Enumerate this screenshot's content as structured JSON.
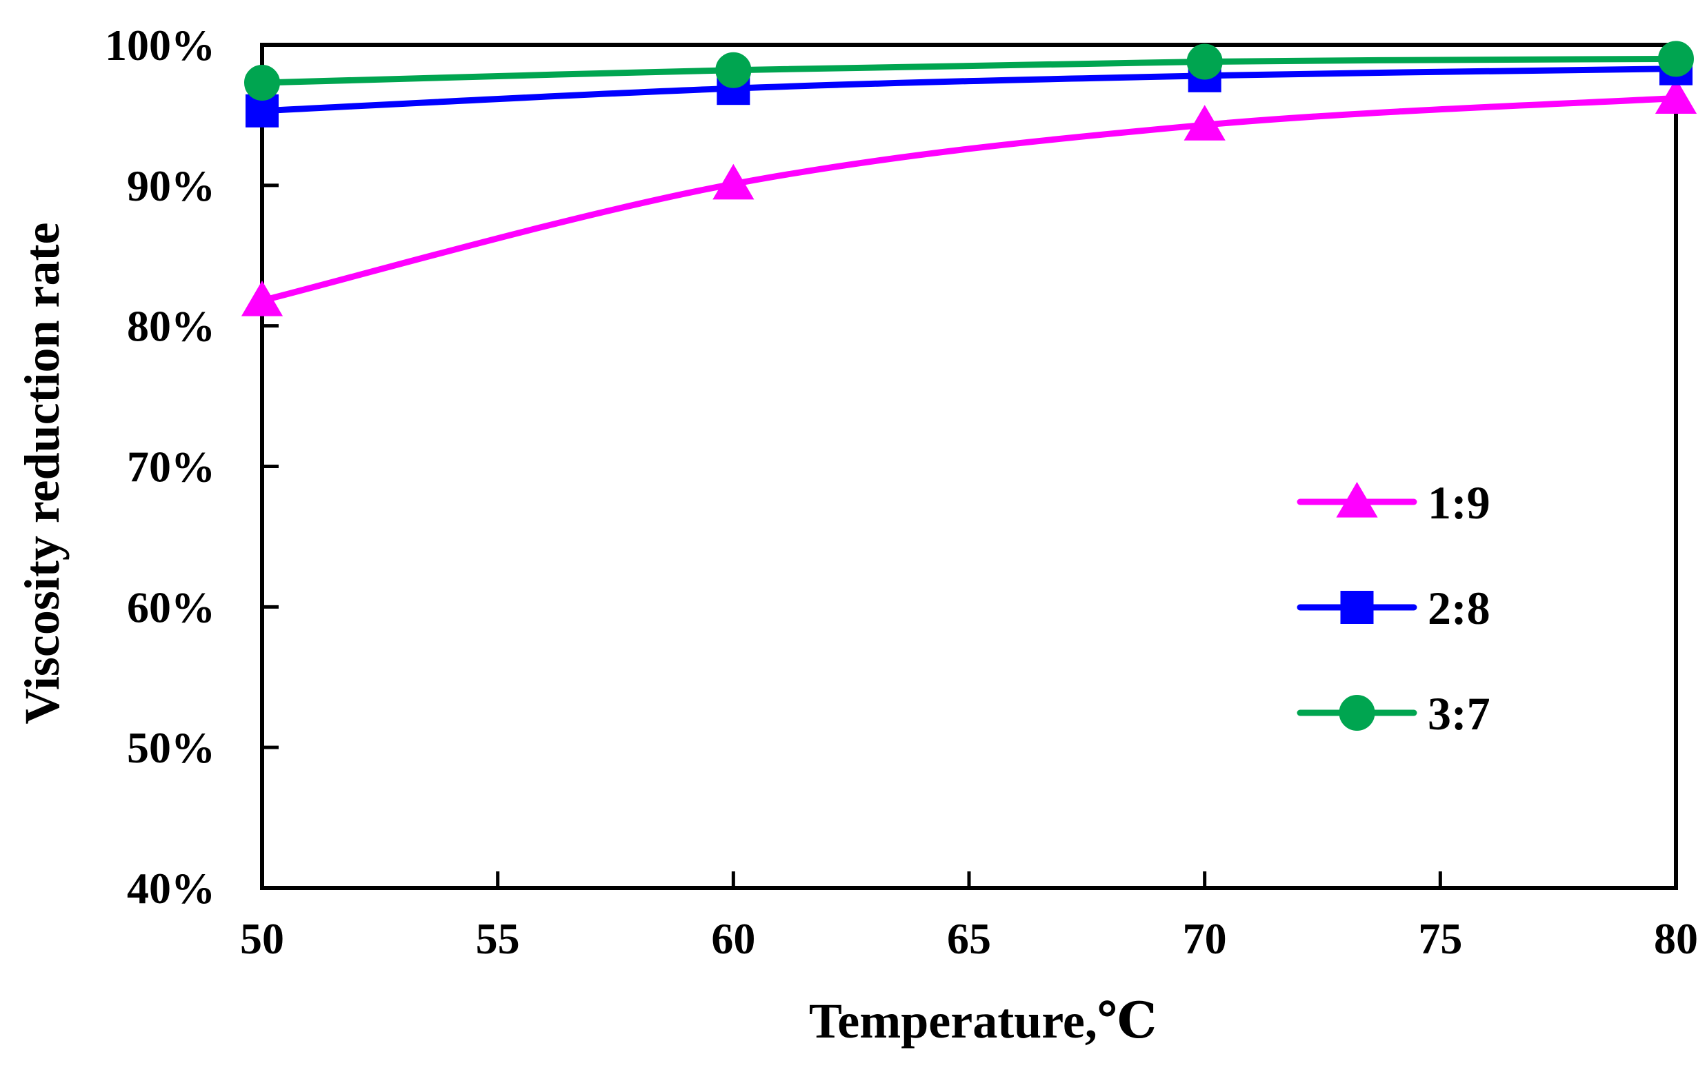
{
  "chart_data": {
    "type": "line",
    "title": "",
    "xlabel": "Temperature,℃",
    "ylabel": "Viscosity reduction rate",
    "xlim": [
      50,
      80
    ],
    "ylim": [
      0.4,
      1.0
    ],
    "xticks": [
      50,
      55,
      60,
      65,
      70,
      75,
      80
    ],
    "xtick_labels": [
      "50",
      "55",
      "60",
      "65",
      "70",
      "75",
      "80"
    ],
    "yticks": [
      0.4,
      0.5,
      0.6,
      0.7,
      0.8,
      0.9,
      1.0
    ],
    "ytick_labels": [
      "40%",
      "50%",
      "60%",
      "70%",
      "80%",
      "90%",
      "100%"
    ],
    "grid": false,
    "legend_position": "center-right",
    "smooth": true,
    "x": [
      50,
      60,
      70,
      80
    ],
    "series": [
      {
        "name": "1:9",
        "values": [
          0.818,
          0.901,
          0.943,
          0.962
        ],
        "color": "#FF00FF",
        "marker": "triangle"
      },
      {
        "name": "2:8",
        "values": [
          0.953,
          0.969,
          0.978,
          0.983
        ],
        "color": "#0000FF",
        "marker": "square"
      },
      {
        "name": "3:7",
        "values": [
          0.973,
          0.982,
          0.988,
          0.99
        ],
        "color": "#00A550",
        "marker": "circle"
      }
    ]
  }
}
